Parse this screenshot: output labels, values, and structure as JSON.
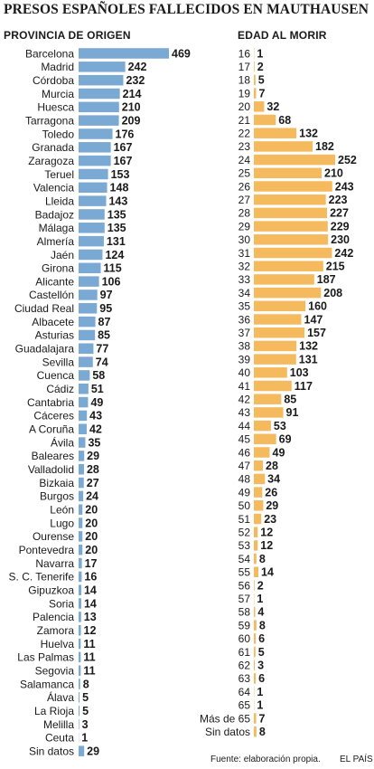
{
  "title": "PRESOS ESPAÑOLES FALLECIDOS EN MAUTHAUSEN",
  "footer": {
    "source": "Fuente: elaboración propia.",
    "brand": "EL PAÍS"
  },
  "colors": {
    "left_bar": "#7aa9d3",
    "right_bar": "#f5b95e",
    "text": "#1a1a1a"
  },
  "chart_data": [
    {
      "type": "bar",
      "orientation": "horizontal",
      "title": "PROVINCIA DE ORIGEN",
      "categories": [
        "Barcelona",
        "Madrid",
        "Córdoba",
        "Murcia",
        "Huesca",
        "Tarragona",
        "Toledo",
        "Granada",
        "Zaragoza",
        "Teruel",
        "Valencia",
        "Lleida",
        "Badajoz",
        "Málaga",
        "Almería",
        "Jaén",
        "Girona",
        "Alicante",
        "Castellón",
        "Ciudad Real",
        "Albacete",
        "Asturias",
        "Guadalajara",
        "Sevilla",
        "Cuenca",
        "Cádiz",
        "Cantabria",
        "Cáceres",
        "A Coruña",
        "Ávila",
        "Baleares",
        "Valladolid",
        "Bizkaia",
        "Burgos",
        "León",
        "Lugo",
        "Ourense",
        "Pontevedra",
        "Navarra",
        "S. C. Tenerife",
        "Gipuzkoa",
        "Soria",
        "Palencia",
        "Zamora",
        "Huelva",
        "Las Palmas",
        "Segovia",
        "Salamanca",
        "Álava",
        "La Rioja",
        "Melilla",
        "Ceuta",
        "Sin datos"
      ],
      "values": [
        469,
        242,
        232,
        214,
        210,
        209,
        176,
        167,
        167,
        153,
        148,
        143,
        135,
        135,
        131,
        124,
        115,
        106,
        97,
        95,
        87,
        85,
        77,
        74,
        58,
        51,
        49,
        43,
        42,
        35,
        29,
        28,
        27,
        24,
        20,
        20,
        20,
        20,
        17,
        16,
        14,
        14,
        13,
        12,
        11,
        11,
        11,
        8,
        5,
        5,
        3,
        1,
        29
      ],
      "color": "#7aa9d3"
    },
    {
      "type": "bar",
      "orientation": "horizontal",
      "title": "EDAD AL MORIR",
      "categories": [
        "16",
        "17",
        "18",
        "19",
        "20",
        "21",
        "22",
        "23",
        "24",
        "25",
        "26",
        "27",
        "28",
        "29",
        "30",
        "31",
        "32",
        "33",
        "34",
        "35",
        "36",
        "37",
        "38",
        "39",
        "40",
        "41",
        "42",
        "43",
        "44",
        "45",
        "46",
        "47",
        "48",
        "49",
        "50",
        "51",
        "52",
        "53",
        "54",
        "55",
        "56",
        "57",
        "58",
        "59",
        "60",
        "61",
        "62",
        "63",
        "64",
        "65",
        "Más de 65",
        "Sin datos"
      ],
      "values": [
        1,
        2,
        5,
        7,
        32,
        68,
        132,
        182,
        252,
        210,
        243,
        223,
        227,
        229,
        230,
        242,
        215,
        187,
        208,
        160,
        147,
        157,
        132,
        131,
        103,
        117,
        85,
        91,
        53,
        69,
        49,
        28,
        34,
        26,
        29,
        23,
        12,
        12,
        8,
        14,
        2,
        1,
        4,
        8,
        6,
        5,
        3,
        6,
        1,
        1,
        7,
        8
      ],
      "color": "#f5b95e"
    }
  ]
}
